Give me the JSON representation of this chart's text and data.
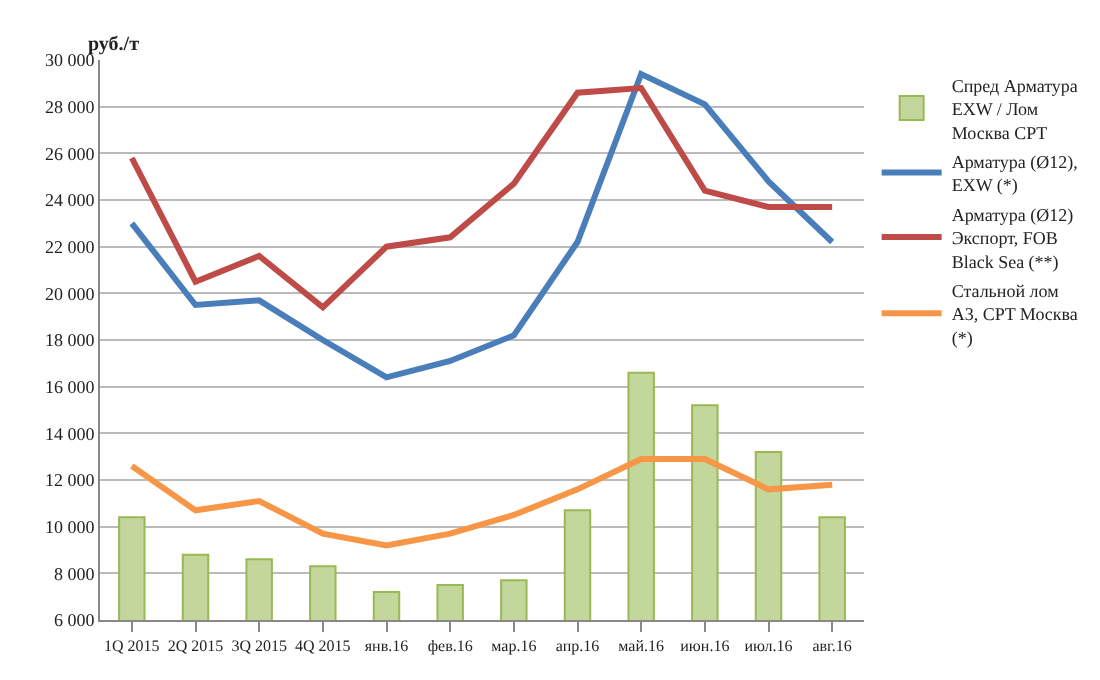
{
  "chart_data": {
    "type": "line",
    "ylabel": "руб./т",
    "categories": [
      "1Q 2015",
      "2Q 2015",
      "3Q 2015",
      "4Q 2015",
      "янв.16",
      "фев.16",
      "мар.16",
      "апр.16",
      "май.16",
      "июн.16",
      "июл.16",
      "авг.16"
    ],
    "series": [
      {
        "name": "Спред Арматура EXW / Лом Москва CPT",
        "type": "bar",
        "color": "#c3d69b",
        "values": [
          10400,
          8800,
          8600,
          8300,
          7200,
          7500,
          7700,
          10700,
          16600,
          15200,
          13200,
          10400
        ]
      },
      {
        "name": "Арматура (Ø12), EXW (*)",
        "color": "#4a7ebb",
        "values": [
          23000,
          19500,
          19700,
          18000,
          16400,
          17100,
          18200,
          22200,
          29400,
          28100,
          24800,
          22200
        ]
      },
      {
        "name": "Арматура (Ø12) Экспорт, FOB Black Sea (**)",
        "color": "#be4b48",
        "values": [
          25800,
          20500,
          21600,
          19400,
          22000,
          22400,
          24700,
          28600,
          28800,
          24400,
          23700,
          23700
        ]
      },
      {
        "name": "Стальной лом А3, CPT Москва (*)",
        "color": "#f79646",
        "values": [
          12600,
          10700,
          11100,
          9700,
          9200,
          9700,
          10500,
          11600,
          12900,
          12900,
          11600,
          11800
        ]
      }
    ],
    "ylim": [
      6000,
      30000
    ],
    "yticks": [
      {
        "value": 6000,
        "label": "6 000"
      },
      {
        "value": 8000,
        "label": "8 000"
      },
      {
        "value": 10000,
        "label": "10 000"
      },
      {
        "value": 12000,
        "label": "12 000"
      },
      {
        "value": 14000,
        "label": "14 000"
      },
      {
        "value": 16000,
        "label": "16 000"
      },
      {
        "value": 18000,
        "label": "18 000"
      },
      {
        "value": 20000,
        "label": "20 000"
      },
      {
        "value": 22000,
        "label": "22 000"
      },
      {
        "value": 24000,
        "label": "24 000"
      },
      {
        "value": 26000,
        "label": "26 000"
      },
      {
        "value": 28000,
        "label": "28 000"
      },
      {
        "value": 30000,
        "label": "30 000"
      }
    ],
    "grid": "y",
    "legend": "right",
    "marker": "none",
    "line_style": "solid"
  }
}
